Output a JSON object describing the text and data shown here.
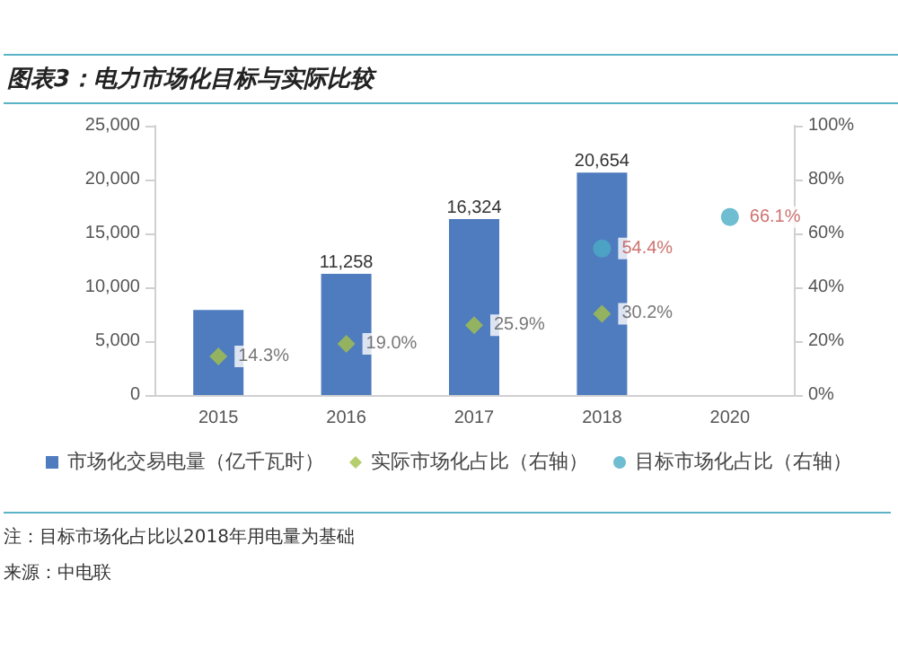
{
  "chart_data": {
    "type": "bar",
    "title": "图表3：电力市场化目标与实际比较",
    "categories": [
      "2015",
      "2016",
      "2017",
      "2018",
      "2020"
    ],
    "series": [
      {
        "name": "市场化交易电量（亿千瓦时）",
        "color": "#4f7bbf",
        "values": [
          7900,
          11258,
          16324,
          20654,
          null
        ],
        "value_labels": [
          null,
          "11,258",
          "16,324",
          "20,654",
          null
        ]
      },
      {
        "name": "实际市场化占比（右轴）",
        "type": "scatter",
        "axis": "y2",
        "marker": "diamond",
        "color": "#a4c24a",
        "values": [
          14.3,
          19.0,
          25.9,
          30.2,
          null
        ],
        "value_labels": [
          "14.3%",
          "19.0%",
          "25.9%",
          "30.2%",
          null
        ]
      },
      {
        "name": "目标市场化占比（右轴）",
        "type": "scatter",
        "axis": "y2",
        "marker": "circle",
        "color": "#4bacc6",
        "values": [
          null,
          null,
          null,
          54.4,
          66.1
        ],
        "value_labels": [
          null,
          null,
          null,
          "54.4%",
          "66.1%"
        ]
      }
    ],
    "ylim": [
      0,
      25000
    ],
    "yticks": [
      0,
      {
        "value": 5000,
        "label": "5,000"
      },
      {
        "value": 10000,
        "label": "10,000"
      },
      {
        "value": 15000,
        "label": "15,000"
      },
      {
        "value": 20000,
        "label": "20,000"
      },
      {
        "value": 25000,
        "label": "25,000"
      }
    ],
    "y2lim": [
      0,
      100
    ],
    "y2ticks": [
      {
        "value": 0,
        "label": "0%"
      },
      {
        "value": 20,
        "label": "20%"
      },
      {
        "value": 40,
        "label": "40%"
      },
      {
        "value": 60,
        "label": "60%"
      },
      {
        "value": 80,
        "label": "80%"
      },
      {
        "value": 100,
        "label": "100%"
      }
    ],
    "grid": false,
    "legend": "bottom",
    "annotations": [
      "注：目标市场化占比以2018年用电量为基础",
      "来源：中电联"
    ]
  }
}
